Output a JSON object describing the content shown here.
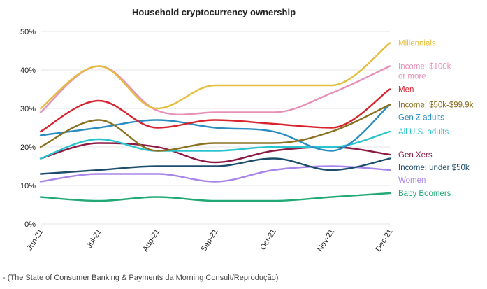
{
  "chart_data": {
    "type": "line",
    "title": "Household cryptocurrency ownership",
    "categories": [
      "Jun-21",
      "Jul-21",
      "Aug-21",
      "Sep-21",
      "Oct-21",
      "Nov-21",
      "Dec-21"
    ],
    "y_ticks": [
      "0%",
      "10%",
      "20%",
      "30%",
      "40%",
      "50%"
    ],
    "ylim": [
      0,
      50
    ],
    "grid": true,
    "legend": "direct labels at right end of lines",
    "series": [
      {
        "name": "Millennials",
        "label_lines": [
          "Millennials"
        ],
        "color": "#e4bf3f",
        "values": [
          30,
          41,
          30,
          36,
          36,
          36,
          47
        ]
      },
      {
        "name": "Income: $100k or more",
        "label_lines": [
          "Income: $100k",
          "or more"
        ],
        "color": "#e891b8",
        "values": [
          29,
          41,
          29.5,
          29,
          29,
          34,
          41
        ]
      },
      {
        "name": "Men",
        "label_lines": [
          "Men"
        ],
        "color": "#d8232e",
        "values": [
          24,
          32,
          25,
          27,
          26,
          25,
          35
        ]
      },
      {
        "name": "Income: $50k-$99.9k",
        "label_lines": [
          "Income: $50k-$99.9k"
        ],
        "color": "#8a7020",
        "values": [
          20,
          27,
          19,
          21,
          21,
          24,
          31
        ]
      },
      {
        "name": "Gen Z adults",
        "label_lines": [
          "Gen Z adults"
        ],
        "color": "#2a8cc0",
        "values": [
          23,
          25,
          27,
          25,
          24,
          19,
          31
        ]
      },
      {
        "name": "All U.S. adults",
        "label_lines": [
          "All U.S. adults"
        ],
        "color": "#2ac4cf",
        "values": [
          17,
          22,
          19,
          19,
          20,
          20,
          24
        ]
      },
      {
        "name": "Gen Xers",
        "label_lines": [
          "Gen Xers"
        ],
        "color": "#8c1a45",
        "values": [
          17,
          21,
          20,
          16,
          19,
          20,
          18
        ]
      },
      {
        "name": "Income: under $50k",
        "label_lines": [
          "Income: under $50k"
        ],
        "color": "#1c4d6b",
        "values": [
          13,
          14,
          15,
          15,
          17,
          14,
          17
        ]
      },
      {
        "name": "Women",
        "label_lines": [
          "Women"
        ],
        "color": "#a885e8",
        "values": [
          11,
          13,
          13,
          11,
          14,
          15,
          14
        ]
      },
      {
        "name": "Baby Boomers",
        "label_lines": [
          "Baby Boomers"
        ],
        "color": "#22a874",
        "values": [
          7,
          6,
          7,
          6,
          6,
          7,
          8
        ]
      }
    ]
  },
  "caption": "- (The State of Consumer Banking & Payments da Morning Consult/Reprodução)"
}
